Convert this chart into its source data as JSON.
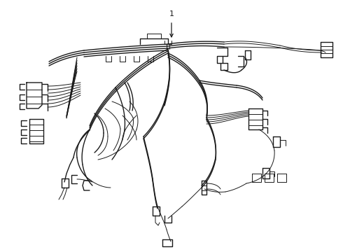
{
  "background_color": "#ffffff",
  "line_color": "#1a1a1a",
  "border": false,
  "label": "1",
  "fig_width": 4.9,
  "fig_height": 3.6,
  "dpi": 100,
  "lw_main": 1.0,
  "lw_thin": 0.7,
  "lw_thick": 1.2
}
